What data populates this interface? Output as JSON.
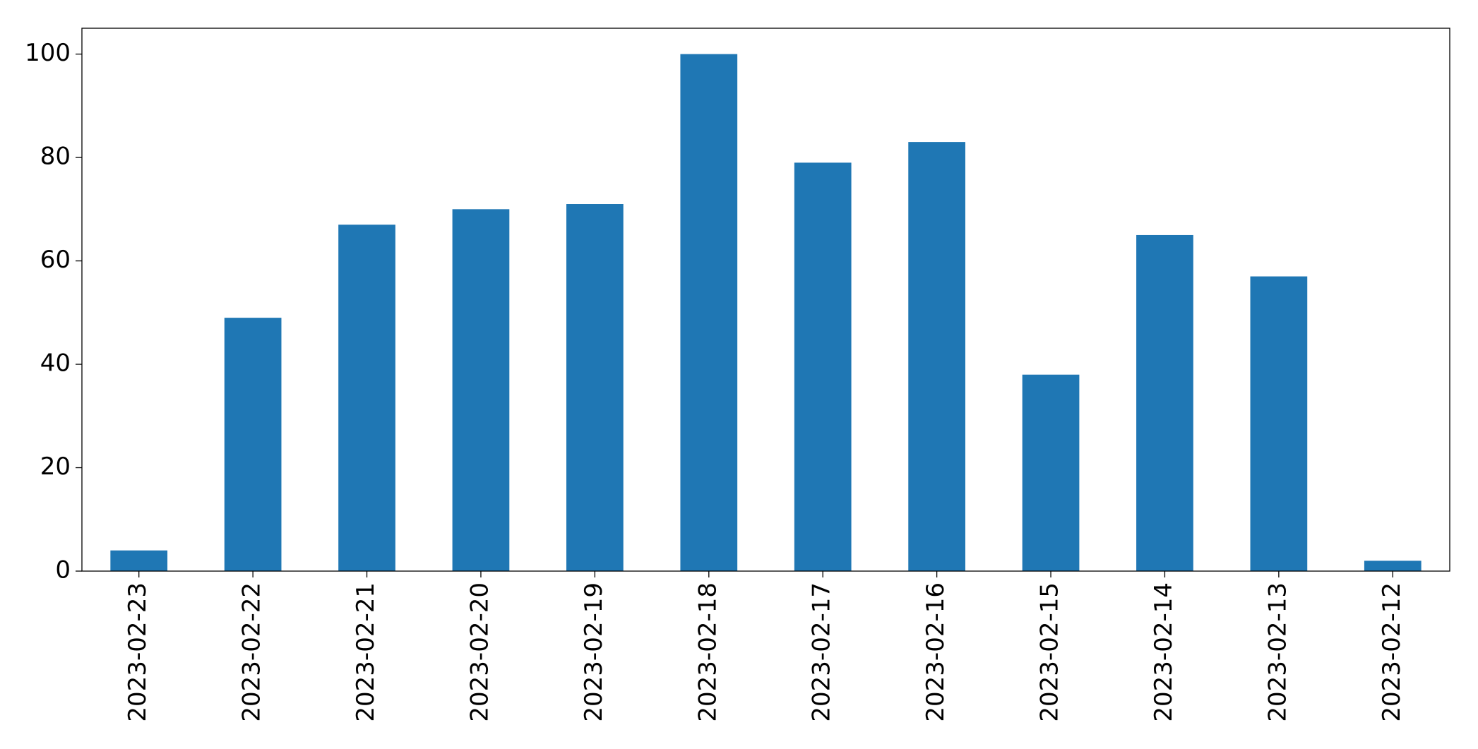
{
  "chart_data": {
    "type": "bar",
    "categories": [
      "2023-02-23",
      "2023-02-22",
      "2023-02-21",
      "2023-02-20",
      "2023-02-19",
      "2023-02-18",
      "2023-02-17",
      "2023-02-16",
      "2023-02-15",
      "2023-02-14",
      "2023-02-13",
      "2023-02-12"
    ],
    "values": [
      4,
      49,
      67,
      70,
      71,
      100,
      79,
      83,
      38,
      65,
      57,
      2
    ],
    "color": "#1f77b4",
    "ylim": [
      0,
      105
    ],
    "yticks": [
      0,
      20,
      40,
      60,
      80,
      100
    ],
    "grid": false
  }
}
